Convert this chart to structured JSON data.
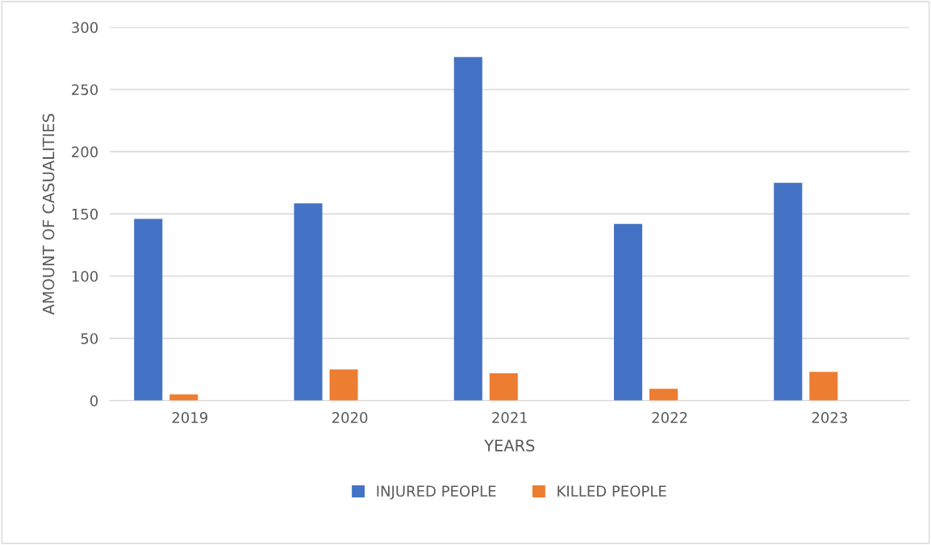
{
  "chart_data": {
    "type": "bar",
    "xlabel": "YEARS",
    "ylabel": "AMOUNT OF CASUALITIES",
    "categories": [
      "2019",
      "2020",
      "2021",
      "2022",
      "2023"
    ],
    "series": [
      {
        "name": "INJURED PEOPLE",
        "color": "#4472c4",
        "values": [
          146,
          158.5,
          276,
          142,
          175
        ]
      },
      {
        "name": "KILLED PEOPLE",
        "color": "#ed7d31",
        "values": [
          5,
          25,
          22,
          9.5,
          23
        ]
      }
    ],
    "ylim": [
      0,
      300
    ],
    "yticks": [
      0,
      50,
      100,
      150,
      200,
      250,
      300
    ],
    "grid": "y",
    "legend": "bottom"
  }
}
